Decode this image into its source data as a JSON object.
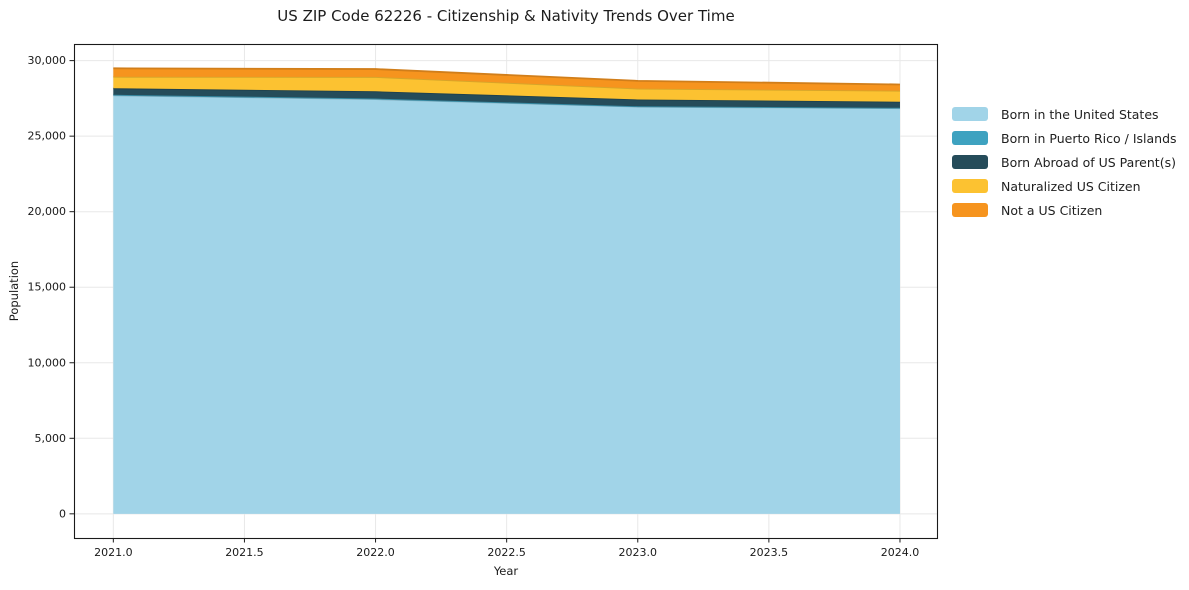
{
  "title": "US ZIP Code 62226 - Citizenship & Nativity Trends Over Time",
  "chart_data": {
    "type": "area",
    "stacked": true,
    "title": "US ZIP Code 62226 - Citizenship & Nativity Trends Over Time",
    "xlabel": "Year",
    "ylabel": "Population",
    "x": [
      2021,
      2022,
      2023,
      2024
    ],
    "series": [
      {
        "name": "Born in the United States",
        "color": "#a1d4e8",
        "values": [
          27700,
          27450,
          26950,
          26850
        ]
      },
      {
        "name": "Born in Puerto Rico / Islands",
        "color": "#3ea2c0",
        "values": [
          40,
          40,
          30,
          30
        ]
      },
      {
        "name": "Born Abroad of US Parent(s)",
        "color": "#254c5a",
        "values": [
          430,
          480,
          450,
          400
        ]
      },
      {
        "name": "Naturalized US Citizen",
        "color": "#fcc231",
        "values": [
          760,
          950,
          720,
          730
        ]
      },
      {
        "name": "Not a US Citizen",
        "color": "#f6941e",
        "values": [
          560,
          520,
          510,
          410
        ]
      }
    ],
    "totals": [
      29490,
      29440,
      28660,
      28420
    ],
    "xlim": [
      2020.85,
      2024.145
    ],
    "ylim": [
      -1600,
      31100
    ],
    "xticks": [
      2021.0,
      2021.5,
      2022.0,
      2022.5,
      2023.0,
      2023.5,
      2024.0
    ],
    "xtick_labels": [
      "2021.0",
      "2021.5",
      "2022.0",
      "2022.5",
      "2023.0",
      "2023.5",
      "2024.0"
    ],
    "yticks": [
      0,
      5000,
      10000,
      15000,
      20000,
      25000,
      30000
    ],
    "ytick_labels": [
      "0",
      "5,000",
      "10,000",
      "15,000",
      "20,000",
      "25,000",
      "30,000"
    ],
    "grid": true,
    "legend_position": "center right outside"
  }
}
